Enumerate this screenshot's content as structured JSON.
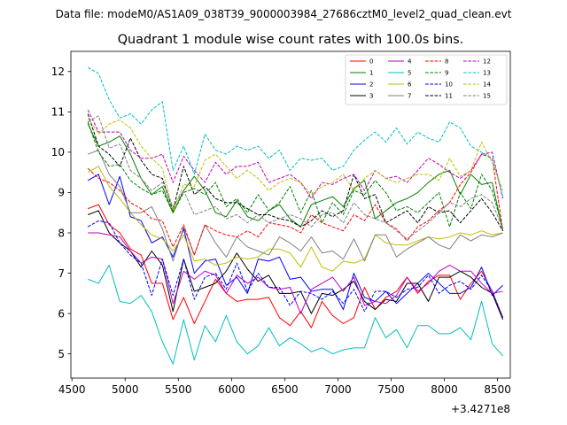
{
  "suptitle": "Data file: modeM0/AS1A09_038T39_9000003984_27686cztM0_level2_quad_clean.evt",
  "chart_data": {
    "type": "line",
    "title": "Quadrant 1 module wise count rates with 100.0s bins.",
    "xlabel": "",
    "ylabel": "",
    "x_offset_label": "+3.4271e8",
    "xlim": [
      4490,
      8620
    ],
    "ylim": [
      4.4,
      12.5
    ],
    "xticks": [
      4500,
      5000,
      5500,
      6000,
      6500,
      7000,
      7500,
      8000,
      8500
    ],
    "yticks": [
      5,
      6,
      7,
      8,
      9,
      10,
      11,
      12
    ],
    "legend_position": "top-right",
    "x": [
      4650,
      4750,
      4850,
      4950,
      5050,
      5150,
      5250,
      5350,
      5450,
      5550,
      5650,
      5750,
      5850,
      5950,
      6050,
      6150,
      6250,
      6350,
      6450,
      6550,
      6650,
      6750,
      6850,
      6950,
      7050,
      7150,
      7250,
      7350,
      7450,
      7550,
      7650,
      7750,
      7850,
      7950,
      8050,
      8150,
      8250,
      8350,
      8450,
      8550
    ],
    "series": [
      {
        "name": "0",
        "color": "#ff0000",
        "style": "solid",
        "values": [
          8.6,
          8.7,
          8.2,
          8.0,
          7.6,
          7.45,
          6.75,
          6.75,
          5.85,
          6.4,
          5.75,
          6.3,
          6.85,
          6.5,
          6.3,
          6.35,
          6.35,
          6.4,
          5.9,
          5.7,
          6.05,
          5.65,
          6.3,
          5.95,
          5.75,
          5.9,
          6.65,
          6.1,
          6.4,
          6.55,
          6.9,
          6.5,
          6.8,
          6.95,
          6.95,
          6.35,
          6.75,
          7.05,
          6.55,
          5.9
        ]
      },
      {
        "name": "1",
        "color": "#008000",
        "style": "solid",
        "values": [
          10.7,
          10.15,
          10.25,
          10.4,
          9.95,
          9.35,
          8.95,
          9.15,
          8.5,
          9.05,
          9.4,
          9.05,
          8.5,
          8.4,
          8.8,
          8.4,
          8.3,
          8.55,
          8.7,
          8.35,
          8.15,
          8.7,
          8.8,
          8.9,
          8.65,
          9.1,
          9.3,
          8.35,
          8.55,
          8.75,
          8.85,
          9.0,
          9.25,
          9.45,
          9.55,
          8.95,
          9.45,
          9.2,
          9.25,
          8.05
        ]
      },
      {
        "name": "2",
        "color": "#0000ff",
        "style": "solid",
        "values": [
          9.3,
          9.45,
          8.7,
          9.4,
          8.4,
          8.3,
          7.75,
          7.9,
          7.4,
          8.1,
          7.0,
          7.3,
          7.35,
          6.7,
          6.9,
          6.5,
          7.35,
          7.3,
          7.4,
          6.85,
          6.9,
          6.55,
          6.6,
          6.6,
          6.1,
          7.0,
          6.4,
          6.3,
          6.55,
          6.25,
          6.5,
          6.75,
          7.0,
          6.75,
          6.5,
          6.5,
          6.65,
          7.15,
          6.45,
          6.7
        ]
      },
      {
        "name": "3",
        "color": "#000000",
        "style": "solid",
        "values": [
          8.45,
          8.55,
          8.0,
          7.75,
          7.55,
          7.15,
          7.55,
          7.2,
          6.05,
          7.35,
          6.55,
          6.65,
          6.75,
          7.05,
          7.5,
          7.1,
          6.8,
          6.95,
          6.5,
          6.5,
          6.55,
          6.0,
          6.5,
          6.45,
          6.6,
          6.8,
          6.3,
          6.1,
          6.35,
          6.3,
          6.75,
          6.75,
          6.3,
          6.9,
          6.9,
          7.05,
          6.9,
          6.65,
          6.5,
          5.85
        ]
      },
      {
        "name": "4",
        "color": "#bf00bf",
        "style": "solid",
        "values": [
          8.0,
          8.0,
          7.95,
          7.9,
          7.55,
          7.25,
          7.4,
          7.35,
          6.25,
          7.05,
          6.85,
          7.05,
          6.95,
          6.5,
          6.95,
          6.75,
          6.9,
          6.65,
          6.6,
          6.65,
          6.0,
          6.6,
          6.75,
          6.9,
          6.55,
          6.9,
          6.2,
          6.3,
          6.25,
          6.45,
          6.9,
          6.55,
          6.75,
          7.05,
          7.2,
          7.05,
          7.05,
          6.75,
          6.5,
          6.55
        ]
      },
      {
        "name": "5",
        "color": "#00bfbf",
        "style": "solid",
        "values": [
          6.85,
          6.75,
          7.2,
          6.3,
          6.25,
          6.45,
          6.05,
          5.3,
          4.75,
          5.85,
          4.85,
          5.7,
          5.3,
          5.95,
          5.3,
          5.0,
          5.2,
          5.65,
          5.2,
          5.4,
          5.25,
          5.05,
          5.15,
          5.0,
          5.1,
          5.15,
          5.15,
          5.9,
          5.4,
          5.6,
          5.15,
          5.7,
          5.7,
          5.5,
          5.5,
          5.65,
          5.35,
          6.3,
          5.25,
          4.95
        ]
      },
      {
        "name": "6",
        "color": "#bfbf00",
        "style": "solid",
        "values": [
          9.5,
          9.65,
          9.15,
          8.85,
          8.5,
          8.2,
          7.95,
          7.85,
          7.55,
          7.95,
          7.3,
          7.35,
          7.2,
          7.25,
          7.4,
          7.35,
          7.4,
          7.6,
          7.6,
          7.5,
          7.15,
          7.65,
          7.15,
          7.05,
          7.3,
          7.25,
          7.35,
          7.95,
          7.75,
          7.7,
          7.7,
          7.8,
          7.9,
          7.85,
          7.9,
          8.0,
          7.95,
          8.05,
          7.95,
          8.0
        ]
      },
      {
        "name": "7",
        "color": "#808080",
        "style": "solid",
        "values": [
          9.95,
          10.05,
          9.45,
          9.15,
          8.5,
          8.5,
          8.65,
          8.1,
          7.3,
          8.15,
          7.45,
          8.2,
          7.75,
          7.4,
          7.9,
          7.65,
          7.55,
          7.45,
          7.9,
          7.75,
          7.55,
          7.9,
          7.5,
          7.55,
          7.35,
          7.85,
          7.3,
          7.95,
          7.95,
          7.4,
          7.6,
          7.75,
          7.9,
          7.7,
          7.6,
          7.95,
          7.8,
          7.95,
          7.9,
          8.0
        ]
      },
      {
        "name": "8",
        "color": "#ff0000",
        "style": "dashed",
        "values": [
          9.6,
          9.35,
          9.25,
          9.05,
          8.75,
          8.6,
          8.35,
          8.3,
          7.65,
          8.2,
          7.45,
          8.2,
          8.05,
          7.95,
          7.9,
          8.05,
          7.9,
          8.25,
          8.2,
          8.15,
          8.0,
          8.45,
          8.25,
          8.15,
          8.05,
          8.45,
          8.3,
          8.7,
          8.25,
          8.1,
          7.8,
          8.15,
          8.3,
          8.55,
          8.75,
          9.2,
          9.5,
          9.95,
          9.85,
          8.05
        ]
      },
      {
        "name": "9",
        "color": "#008000",
        "style": "dashed",
        "values": [
          10.75,
          10.0,
          9.65,
          9.7,
          9.3,
          9.1,
          8.95,
          9.05,
          8.5,
          9.0,
          9.1,
          8.95,
          9.25,
          8.65,
          8.85,
          8.5,
          8.95,
          8.55,
          8.75,
          9.15,
          8.5,
          9.05,
          8.25,
          8.75,
          8.45,
          9.05,
          8.95,
          9.3,
          9.0,
          8.55,
          8.65,
          8.5,
          8.75,
          9.0,
          8.15,
          9.0,
          8.6,
          9.45,
          9.05,
          8.1
        ]
      },
      {
        "name": "10",
        "color": "#0000ff",
        "style": "dashed",
        "values": [
          8.15,
          8.3,
          8.25,
          7.75,
          7.45,
          7.25,
          6.45,
          7.35,
          6.45,
          7.35,
          6.35,
          6.9,
          7.0,
          6.6,
          7.25,
          6.55,
          7.0,
          6.65,
          6.65,
          6.2,
          6.55,
          6.5,
          6.35,
          6.55,
          6.25,
          6.6,
          6.05,
          6.55,
          6.55,
          6.4,
          6.6,
          6.65,
          6.95,
          6.5,
          6.7,
          6.8,
          6.6,
          6.95,
          6.55,
          5.9
        ]
      },
      {
        "name": "11",
        "color": "#000000",
        "style": "dashed",
        "values": [
          10.95,
          10.15,
          9.95,
          9.65,
          10.35,
          9.8,
          9.45,
          9.35,
          8.55,
          9.65,
          8.95,
          9.15,
          8.85,
          8.75,
          8.75,
          8.6,
          8.45,
          8.45,
          8.35,
          8.3,
          8.15,
          8.3,
          8.55,
          8.4,
          8.55,
          9.45,
          8.85,
          8.95,
          8.25,
          8.4,
          8.55,
          8.25,
          8.65,
          8.5,
          8.55,
          8.25,
          8.55,
          8.85,
          8.5,
          8.05
        ]
      },
      {
        "name": "12",
        "color": "#bf00bf",
        "style": "dashed",
        "values": [
          11.05,
          10.5,
          10.5,
          10.5,
          10.05,
          9.85,
          9.85,
          9.95,
          9.25,
          9.9,
          9.55,
          9.25,
          9.75,
          9.45,
          9.65,
          9.65,
          9.75,
          9.25,
          9.35,
          9.45,
          9.25,
          8.85,
          9.25,
          9.2,
          9.35,
          9.45,
          9.05,
          9.55,
          9.35,
          9.4,
          9.25,
          9.55,
          9.85,
          9.7,
          9.5,
          9.35,
          9.55,
          9.95,
          10.0,
          8.85
        ]
      },
      {
        "name": "13",
        "color": "#00bfbf",
        "style": "dashed",
        "values": [
          12.1,
          11.95,
          11.3,
          10.85,
          10.95,
          10.7,
          11.05,
          11.25,
          9.55,
          10.15,
          9.45,
          10.45,
          10.05,
          9.95,
          10.15,
          10.05,
          10.15,
          9.85,
          10.05,
          9.55,
          9.85,
          9.8,
          9.85,
          9.55,
          9.65,
          10.05,
          10.3,
          10.5,
          10.25,
          10.6,
          10.2,
          10.5,
          10.35,
          10.25,
          10.75,
          10.6,
          10.15,
          10.0,
          9.85,
          8.9
        ]
      },
      {
        "name": "14",
        "color": "#bfbf00",
        "style": "dashed",
        "values": [
          10.85,
          10.45,
          10.7,
          10.8,
          10.6,
          10.15,
          9.85,
          9.6,
          8.55,
          9.2,
          9.15,
          9.8,
          9.95,
          9.65,
          9.35,
          9.55,
          9.35,
          9.05,
          9.25,
          9.35,
          9.25,
          8.95,
          9.15,
          9.25,
          9.45,
          9.05,
          9.35,
          9.55,
          9.35,
          9.25,
          9.35,
          9.45,
          9.45,
          9.3,
          9.85,
          9.4,
          9.55,
          10.25,
          9.75,
          9.05
        ]
      },
      {
        "name": "15",
        "color": "#808080",
        "style": "dashed",
        "values": [
          10.75,
          10.9,
          10.1,
          10.2,
          9.55,
          9.35,
          9.05,
          9.25,
          8.65,
          9.05,
          8.45,
          8.55,
          8.65,
          8.35,
          8.45,
          8.25,
          8.45,
          8.25,
          8.35,
          8.45,
          8.35,
          8.15,
          8.45,
          8.5,
          8.25,
          8.75,
          8.45,
          8.35,
          8.25,
          8.05,
          7.85,
          8.05,
          8.25,
          8.5,
          8.75,
          8.65,
          8.85,
          8.95,
          8.75,
          8.1
        ]
      }
    ]
  }
}
